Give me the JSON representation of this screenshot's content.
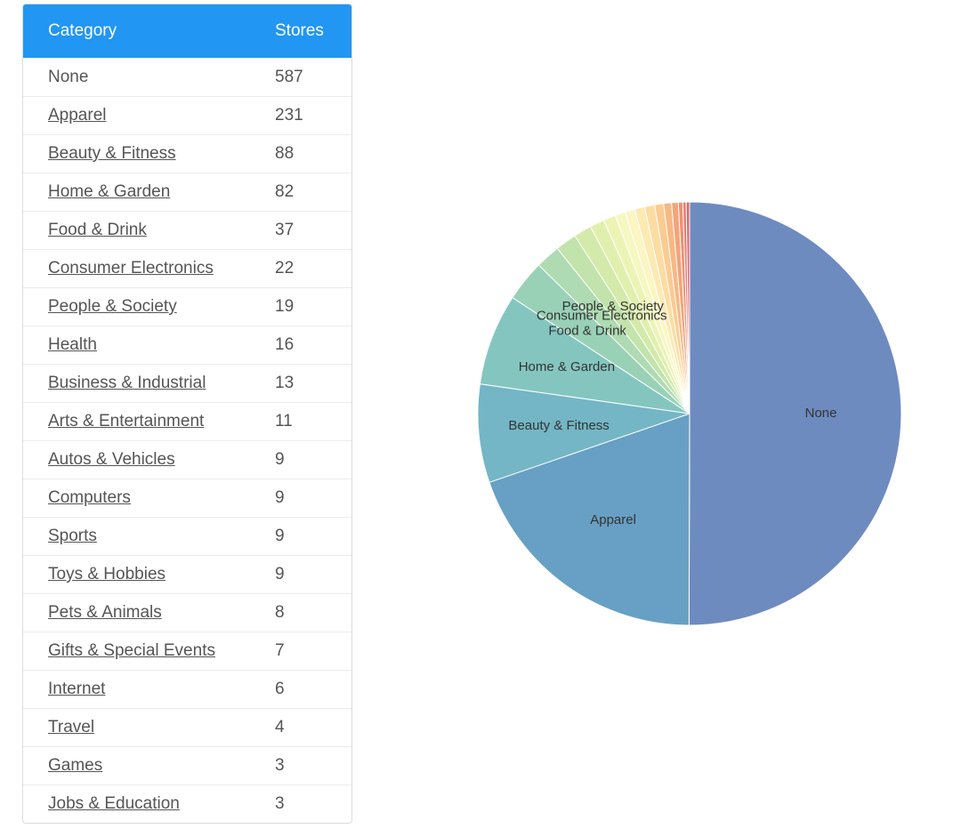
{
  "table": {
    "header": {
      "category": "Category",
      "stores": "Stores"
    },
    "rows": [
      {
        "category": "None",
        "stores": "587",
        "link": false
      },
      {
        "category": "Apparel",
        "stores": "231",
        "link": true
      },
      {
        "category": "Beauty & Fitness",
        "stores": "88",
        "link": true
      },
      {
        "category": "Home & Garden",
        "stores": "82",
        "link": true
      },
      {
        "category": "Food & Drink",
        "stores": "37",
        "link": true
      },
      {
        "category": "Consumer Electronics",
        "stores": "22",
        "link": true
      },
      {
        "category": "People & Society",
        "stores": "19",
        "link": true
      },
      {
        "category": "Health",
        "stores": "16",
        "link": true
      },
      {
        "category": "Business & Industrial",
        "stores": "13",
        "link": true
      },
      {
        "category": "Arts & Entertainment",
        "stores": "11",
        "link": true
      },
      {
        "category": "Autos & Vehicles",
        "stores": "9",
        "link": true
      },
      {
        "category": "Computers",
        "stores": "9",
        "link": true
      },
      {
        "category": "Sports",
        "stores": "9",
        "link": true
      },
      {
        "category": "Toys & Hobbies",
        "stores": "9",
        "link": true
      },
      {
        "category": "Pets & Animals",
        "stores": "8",
        "link": true
      },
      {
        "category": "Gifts & Special Events",
        "stores": "7",
        "link": true
      },
      {
        "category": "Internet",
        "stores": "6",
        "link": true
      },
      {
        "category": "Travel",
        "stores": "4",
        "link": true
      },
      {
        "category": "Games",
        "stores": "3",
        "link": true
      },
      {
        "category": "Jobs & Education",
        "stores": "3",
        "link": true
      }
    ]
  },
  "chart_data": {
    "type": "pie",
    "labels_shown": [
      "None",
      "Apparel",
      "Beauty & Fitness",
      "Home & Garden",
      "Food & Drink",
      "Consumer Electronics",
      "People & Society"
    ],
    "slices": [
      {
        "label": "None",
        "value": 587,
        "color": "#6e8bc0"
      },
      {
        "label": "Apparel",
        "value": 231,
        "color": "#67a0c4"
      },
      {
        "label": "Beauty & Fitness",
        "value": 88,
        "color": "#74b6c5"
      },
      {
        "label": "Home & Garden",
        "value": 82,
        "color": "#84c6bf"
      },
      {
        "label": "Food & Drink",
        "value": 37,
        "color": "#99d1b7"
      },
      {
        "label": "Consumer Electronics",
        "value": 22,
        "color": "#aedbb1"
      },
      {
        "label": "People & Society",
        "value": 19,
        "color": "#c2e3ab"
      },
      {
        "label": "Health",
        "value": 16,
        "color": "#d3eaaa"
      },
      {
        "label": "Business & Industrial",
        "value": 13,
        "color": "#e1efae"
      },
      {
        "label": "Arts & Entertainment",
        "value": 11,
        "color": "#ecf4b5"
      },
      {
        "label": "Autos & Vehicles",
        "value": 9,
        "color": "#f5f8c0"
      },
      {
        "label": "Computers",
        "value": 9,
        "color": "#fbf6c2"
      },
      {
        "label": "Sports",
        "value": 9,
        "color": "#fdeab3"
      },
      {
        "label": "Toys & Hobbies",
        "value": 9,
        "color": "#fddca2"
      },
      {
        "label": "Pets & Animals",
        "value": 8,
        "color": "#fbcb91"
      },
      {
        "label": "Gifts & Special Events",
        "value": 7,
        "color": "#f8b883"
      },
      {
        "label": "Internet",
        "value": 6,
        "color": "#f4a37a"
      },
      {
        "label": "Travel",
        "value": 4,
        "color": "#ee8f74"
      },
      {
        "label": "Games",
        "value": 3,
        "color": "#e57b71"
      },
      {
        "label": "Jobs & Education",
        "value": 3,
        "color": "#da6870"
      }
    ]
  }
}
